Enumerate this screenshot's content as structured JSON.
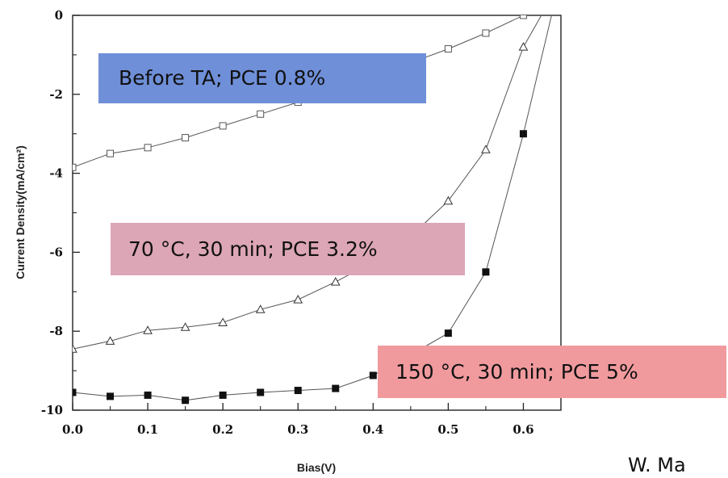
{
  "chart_data": {
    "type": "line",
    "title": "",
    "xlabel": "Bias(V)",
    "ylabel": "Current Density(mA/cm²)",
    "xlim": [
      0.0,
      0.65
    ],
    "ylim": [
      -10,
      0
    ],
    "x_ticks": [
      "0.0",
      "0.1",
      "0.2",
      "0.3",
      "0.4",
      "0.5",
      "0.6"
    ],
    "y_ticks": [
      "0",
      "-2",
      "-4",
      "-6",
      "-8",
      "-10"
    ],
    "grid": false,
    "series": [
      {
        "marker": "open-square",
        "x": [
          0.0,
          0.05,
          0.1,
          0.15,
          0.2,
          0.25,
          0.3,
          0.35,
          0.4,
          0.45,
          0.5,
          0.55,
          0.6,
          0.615
        ],
        "y": [
          -3.85,
          -3.5,
          -3.35,
          -3.1,
          -2.8,
          -2.5,
          -2.2,
          -1.9,
          -1.55,
          -1.2,
          -0.85,
          -0.45,
          0.0,
          0.2
        ]
      },
      {
        "marker": "open-triangle",
        "x": [
          0.0,
          0.05,
          0.1,
          0.15,
          0.2,
          0.25,
          0.3,
          0.35,
          0.4,
          0.45,
          0.5,
          0.55,
          0.6,
          0.63
        ],
        "y": [
          -8.45,
          -8.25,
          -7.98,
          -7.9,
          -7.78,
          -7.45,
          -7.2,
          -6.75,
          -6.25,
          -5.6,
          -4.7,
          -3.4,
          -0.8,
          0.2
        ]
      },
      {
        "marker": "filled-square",
        "x": [
          0.0,
          0.05,
          0.1,
          0.15,
          0.2,
          0.25,
          0.3,
          0.35,
          0.4,
          0.45,
          0.5,
          0.55,
          0.6,
          0.64
        ],
        "y": [
          -9.55,
          -9.65,
          -9.62,
          -9.75,
          -9.62,
          -9.55,
          -9.5,
          -9.45,
          -9.12,
          -8.6,
          -8.05,
          -6.5,
          -3.0,
          0.2
        ]
      }
    ],
    "annotations": [
      {
        "text": "Before TA; PCE 0.8%",
        "bg": "#6f8fd8"
      },
      {
        "text": "70 °C, 30 min; PCE 3.2%",
        "bg": "#dca6b6"
      },
      {
        "text": "150 °C, 30 min; PCE 5%",
        "bg": "#f09a9e"
      }
    ]
  },
  "citation": "W. Ma"
}
